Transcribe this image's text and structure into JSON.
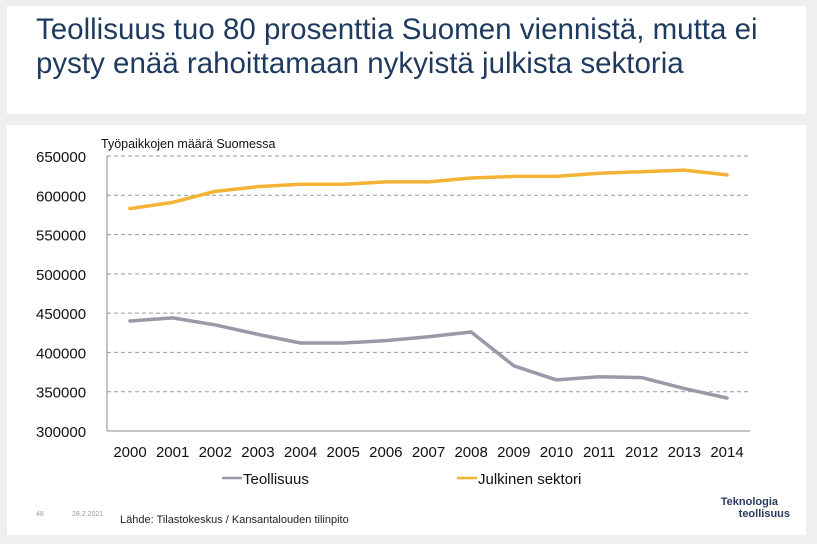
{
  "title": "Teollisuus tuo 80 prosenttia Suomen viennistä, mutta ei pysty enää rahoittamaan nykyistä julkista sektoria",
  "chart_data": {
    "type": "line",
    "title": "Työpaikkojen määrä Suomessa",
    "xlabel": "",
    "ylabel": "",
    "categories": [
      "2000",
      "2001",
      "2002",
      "2003",
      "2004",
      "2005",
      "2006",
      "2007",
      "2008",
      "2009",
      "2010",
      "2011",
      "2012",
      "2013",
      "2014"
    ],
    "ylim": [
      300000,
      650000
    ],
    "yticks": [
      "650000",
      "600000",
      "550000",
      "500000",
      "450000",
      "400000",
      "350000",
      "300000"
    ],
    "grid": true,
    "legend": "bottom",
    "series": [
      {
        "name": "Teollisuus",
        "color": "#9b98a8",
        "values": [
          440000,
          444000,
          435000,
          423000,
          412000,
          412000,
          415000,
          420000,
          426000,
          383000,
          365000,
          369000,
          368000,
          354000,
          342000
        ]
      },
      {
        "name": "Julkinen sektori",
        "color": "#f5b335",
        "values": [
          583000,
          591000,
          605000,
          611000,
          614000,
          614000,
          617000,
          617000,
          622000,
          624000,
          624000,
          628000,
          630000,
          632000,
          626000
        ]
      }
    ]
  },
  "footer": {
    "page_number": "48",
    "date": "28.2.2021",
    "source": "Lähde: Tilastokeskus / Kansantalouden tilinpito",
    "logo_line1": "Teknologia",
    "logo_line2": "teollisuus"
  }
}
